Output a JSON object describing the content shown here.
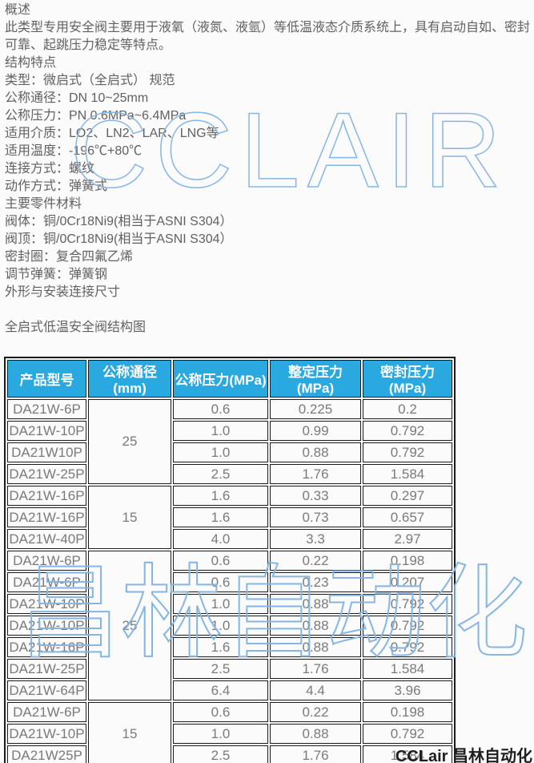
{
  "colors": {
    "accent_blue": "#29a9e0",
    "watermark_blue": "#85b6e3",
    "border_dark": "#1b1b1b",
    "text_gray": "#616161",
    "cell_gray": "#7a7a7a",
    "page_bg": "#fbfbfb"
  },
  "intro": {
    "lines": [
      "概述",
      "此类型专用安全阀主要用于液氧（液氮、液氩）等低温液态介质系统上，具有启动自如、密封",
      "可靠、起跳压力稳定等特点。",
      "结构特点",
      "类型：微启式（全启式） 规范",
      "公称通径：DN 10~25mm",
      "公称压力：PN 0.6MPa~6.4MPa",
      "适用介质：LO2、LN2、LAR、LNG等",
      "适用温度：-196℃+80℃",
      "连接方式：螺纹",
      "动作方式：弹簧式",
      "主要零件材料",
      "阀体：铜/0Cr18Ni9(相当于ASNI S304）",
      "阀顶：铜/0Cr18Ni9(相当于ASNI S304）",
      "密封圈：复合四氟乙烯",
      "调节弹簧：弹簧钢",
      "外形与安装连接尺寸",
      "",
      "全启式低温安全阀结构图"
    ]
  },
  "watermarks": {
    "center_logo": "CCLAIR",
    "table_logo": "昌林自动化",
    "corner_logo": "CCLair 昌林自动化"
  },
  "table": {
    "headers": [
      "产品型号",
      "公称通径(mm)",
      "公称压力(MPa)",
      "整定压力(MPa)",
      "密封压力(MPa)"
    ],
    "groups": [
      {
        "dn": "25",
        "rows": [
          {
            "model": "DA21W-6P",
            "pn": "0.6",
            "set": "0.225",
            "seal": "0.2"
          },
          {
            "model": "DA21W-10P",
            "pn": "1.0",
            "set": "0.99",
            "seal": "0.792"
          },
          {
            "model": "DA21W10P",
            "pn": "1.0",
            "set": "0.88",
            "seal": "0.792"
          },
          {
            "model": "DA21W-25P",
            "pn": "2.5",
            "set": "1.76",
            "seal": "1.584"
          }
        ]
      },
      {
        "dn": "15",
        "rows": [
          {
            "model": "DA21W-16P",
            "pn": "1.6",
            "set": "0.33",
            "seal": "0.297"
          },
          {
            "model": "DA21W-16P",
            "pn": "1.6",
            "set": "0.73",
            "seal": "0.657"
          },
          {
            "model": "DA21W-40P",
            "pn": "4.0",
            "set": "3.3",
            "seal": "2.97"
          }
        ]
      },
      {
        "dn": "25",
        "rows": [
          {
            "model": "DA21W-6P",
            "pn": "0.6",
            "set": "0.22",
            "seal": "0.198"
          },
          {
            "model": "DA21W-6P",
            "pn": "0.6",
            "set": "0.23",
            "seal": "0.207"
          },
          {
            "model": "DA21W-10P",
            "pn": "1.0",
            "set": "0.88",
            "seal": "0.792"
          },
          {
            "model": "DA21W-10P",
            "pn": "1.0",
            "set": "0.88",
            "seal": "0.792"
          },
          {
            "model": "DA21W-16P",
            "pn": "1.6",
            "set": "0.88",
            "seal": "0.792"
          },
          {
            "model": "DA21W-25P",
            "pn": "2.5",
            "set": "1.76",
            "seal": "1.584"
          },
          {
            "model": "DA21W-64P",
            "pn": "6.4",
            "set": "4.4",
            "seal": "3.96"
          }
        ]
      },
      {
        "dn": "15",
        "rows": [
          {
            "model": "DA21W-6P",
            "pn": "0.6",
            "set": "0.22",
            "seal": "0.198"
          },
          {
            "model": "DA21W-10P",
            "pn": "1.0",
            "set": "0.88",
            "seal": "0.792"
          },
          {
            "model": "DA21W25P",
            "pn": "2.5",
            "set": "1.76",
            "seal": "1.584"
          }
        ]
      }
    ]
  }
}
